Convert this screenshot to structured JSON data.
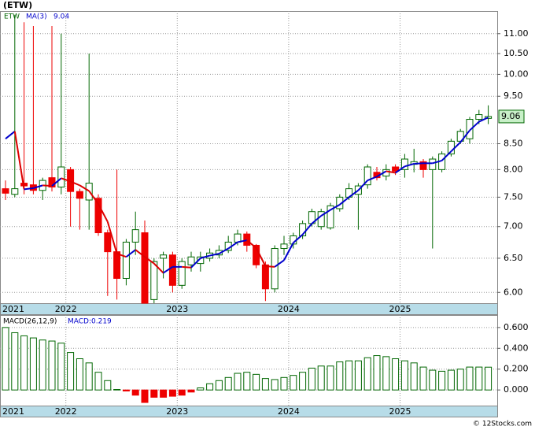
{
  "source": "© 12Stocks.com",
  "chart_data": [
    {
      "type": "candlestick",
      "title": "(ETW)",
      "legend_symbol": "ETW",
      "categories": [
        "2021",
        null,
        null,
        null,
        null,
        null,
        null,
        "2022",
        null,
        null,
        null,
        null,
        null,
        null,
        null,
        null,
        null,
        null,
        null,
        "2023",
        null,
        null,
        null,
        null,
        null,
        null,
        null,
        null,
        null,
        null,
        null,
        "2024",
        null,
        null,
        null,
        null,
        null,
        null,
        null,
        null,
        null,
        null,
        null,
        "2025",
        null,
        null,
        null,
        null,
        null,
        null,
        null,
        null,
        null
      ],
      "open": [
        7.65,
        7.55,
        7.75,
        7.72,
        7.62,
        7.85,
        7.68,
        8.0,
        7.6,
        7.45,
        7.48,
        6.9,
        6.6,
        6.2,
        6.75,
        6.9,
        5.9,
        6.5,
        6.55,
        6.1,
        6.4,
        6.42,
        6.5,
        6.55,
        6.62,
        6.75,
        6.88,
        6.7,
        6.4,
        6.05,
        6.65,
        6.72,
        6.85,
        7.05,
        7.0,
        6.98,
        7.3,
        7.5,
        7.55,
        7.72,
        7.95,
        7.88,
        8.05,
        8.0,
        8.1,
        8.15,
        8.0,
        8.0,
        8.3,
        8.55,
        8.6,
        9.0,
        9.02
      ],
      "high": [
        7.8,
        11.5,
        11.3,
        11.2,
        7.85,
        11.2,
        11.0,
        8.05,
        7.65,
        10.5,
        7.55,
        6.95,
        8.0,
        6.8,
        7.25,
        7.1,
        6.5,
        6.6,
        6.6,
        6.5,
        6.6,
        6.6,
        6.65,
        6.7,
        6.85,
        6.95,
        6.92,
        6.72,
        6.45,
        6.7,
        6.85,
        6.9,
        7.1,
        7.3,
        7.3,
        7.4,
        7.55,
        7.75,
        7.75,
        8.1,
        8.05,
        8.1,
        8.1,
        8.3,
        8.4,
        8.2,
        8.25,
        8.35,
        8.6,
        8.8,
        9.05,
        9.2,
        9.3
      ],
      "low": [
        7.45,
        7.5,
        7.55,
        7.55,
        7.45,
        7.6,
        7.55,
        7.0,
        6.95,
        6.95,
        6.85,
        5.95,
        5.9,
        6.1,
        6.55,
        5.85,
        5.85,
        6.2,
        6.0,
        6.05,
        6.3,
        6.3,
        6.45,
        6.5,
        6.58,
        6.7,
        6.6,
        6.35,
        5.88,
        6.0,
        6.55,
        6.65,
        6.8,
        7.0,
        6.95,
        6.95,
        7.25,
        7.45,
        6.95,
        7.65,
        7.8,
        7.8,
        7.9,
        7.85,
        7.95,
        7.85,
        6.65,
        7.95,
        8.25,
        8.5,
        8.5,
        8.9,
        8.9
      ],
      "close": [
        7.57,
        7.65,
        7.7,
        7.62,
        7.8,
        7.68,
        8.05,
        7.6,
        7.48,
        7.75,
        6.9,
        6.6,
        6.2,
        6.75,
        6.95,
        5.85,
        6.45,
        6.55,
        6.1,
        6.45,
        6.52,
        6.52,
        6.58,
        6.62,
        6.75,
        6.88,
        6.7,
        6.4,
        6.05,
        6.65,
        6.72,
        6.85,
        7.05,
        7.25,
        7.25,
        7.35,
        7.5,
        7.65,
        7.7,
        8.05,
        7.85,
        8.0,
        7.97,
        8.2,
        8.15,
        8.0,
        8.2,
        8.3,
        8.55,
        8.75,
        9.0,
        9.1,
        9.06
      ],
      "up_color": "#006600",
      "down_color": "#ee0000",
      "series": [
        {
          "name": "MA(3)",
          "color": "#0000cc",
          "down_color": "#dd0000",
          "values": [
            8.6,
            8.75,
            7.64,
            7.66,
            7.71,
            7.7,
            7.84,
            7.78,
            7.71,
            7.61,
            7.38,
            7.08,
            6.57,
            6.52,
            6.63,
            6.52,
            6.42,
            6.28,
            6.37,
            6.37,
            6.36,
            6.5,
            6.54,
            6.57,
            6.65,
            6.75,
            6.78,
            6.66,
            6.38,
            6.37,
            6.47,
            6.74,
            6.87,
            7.05,
            7.18,
            7.28,
            7.37,
            7.5,
            7.62,
            7.8,
            7.87,
            7.97,
            7.94,
            8.06,
            8.11,
            8.12,
            8.12,
            8.17,
            8.35,
            8.53,
            8.77,
            8.95,
            9.04
          ]
        }
      ],
      "log_scale": true,
      "grid": true,
      "ylim": [
        5.85,
        11.6
      ],
      "yticks": [
        {
          "value": 6,
          "label": "6.00"
        },
        {
          "value": 6.5,
          "label": "6.50"
        },
        {
          "value": 7,
          "label": "7.00"
        },
        {
          "value": 7.5,
          "label": "7.50"
        },
        {
          "value": 8,
          "label": "8.00"
        },
        {
          "value": 8.5,
          "label": "8.50"
        },
        {
          "value": 9.5,
          "label": "9.50"
        },
        {
          "value": 10,
          "label": "10.00"
        },
        {
          "value": 10.5,
          "label": "10.50"
        },
        {
          "value": 11,
          "label": "11.00"
        }
      ]
    },
    {
      "type": "bar",
      "title": "MACD(26,12,9)",
      "value_name": "MACD:",
      "categories": [
        "2021",
        null,
        null,
        null,
        null,
        null,
        null,
        "2022",
        null,
        null,
        null,
        null,
        null,
        null,
        null,
        null,
        null,
        null,
        null,
        "2023",
        null,
        null,
        null,
        null,
        null,
        null,
        null,
        null,
        null,
        null,
        null,
        "2024",
        null,
        null,
        null,
        null,
        null,
        null,
        null,
        null,
        null,
        null,
        null,
        "2025",
        null,
        null,
        null,
        null,
        null,
        null,
        null,
        null,
        null
      ],
      "values": [
        0.6,
        0.55,
        0.52,
        0.5,
        0.48,
        0.47,
        0.45,
        0.36,
        0.3,
        0.26,
        0.17,
        0.09,
        0.005,
        -0.01,
        -0.05,
        -0.12,
        -0.07,
        -0.07,
        -0.06,
        -0.05,
        -0.02,
        0.02,
        0.06,
        0.09,
        0.12,
        0.16,
        0.17,
        0.15,
        0.11,
        0.1,
        0.12,
        0.14,
        0.17,
        0.21,
        0.23,
        0.23,
        0.27,
        0.28,
        0.28,
        0.31,
        0.33,
        0.32,
        0.3,
        0.28,
        0.26,
        0.22,
        0.19,
        0.18,
        0.19,
        0.2,
        0.22,
        0.22,
        0.219
      ],
      "up_color": "#006600",
      "down_color": "#ee0000",
      "grid": true,
      "ylim": [
        -0.15,
        0.72
      ],
      "yticks": [
        {
          "value": 0,
          "label": "0.000"
        },
        {
          "value": 0.2,
          "label": "0.200"
        },
        {
          "value": 0.4,
          "label": "0.400"
        },
        {
          "value": 0.6,
          "label": "0.600"
        }
      ]
    }
  ]
}
